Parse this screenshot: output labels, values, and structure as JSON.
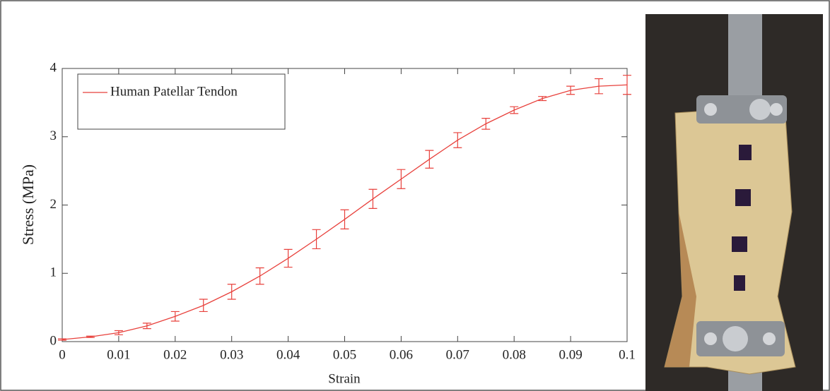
{
  "chart_data": {
    "type": "line",
    "xlabel": "Strain",
    "ylabel": "Stress (MPa)",
    "x": [
      0,
      0.005,
      0.01,
      0.015,
      0.02,
      0.025,
      0.03,
      0.035,
      0.04,
      0.045,
      0.05,
      0.055,
      0.06,
      0.065,
      0.07,
      0.075,
      0.08,
      0.085,
      0.09,
      0.095,
      0.1
    ],
    "series": [
      {
        "name": "Human Patellar Tendon",
        "color": "#e8413c",
        "values": [
          0.03,
          0.07,
          0.13,
          0.23,
          0.37,
          0.53,
          0.73,
          0.96,
          1.22,
          1.5,
          1.79,
          2.09,
          2.38,
          2.67,
          2.95,
          3.19,
          3.39,
          3.56,
          3.68,
          3.74,
          3.76
        ],
        "errors": [
          0.01,
          0.01,
          0.03,
          0.04,
          0.07,
          0.09,
          0.11,
          0.12,
          0.13,
          0.14,
          0.14,
          0.14,
          0.14,
          0.13,
          0.11,
          0.08,
          0.05,
          0.03,
          0.06,
          0.11,
          0.14
        ]
      }
    ],
    "xlim": [
      0,
      0.1
    ],
    "ylim": [
      0,
      4
    ],
    "xticks": [
      0,
      0.01,
      0.02,
      0.03,
      0.04,
      0.05,
      0.06,
      0.07,
      0.08,
      0.09,
      0.1
    ],
    "yticks": [
      0,
      1,
      2,
      3,
      4
    ],
    "legend": "upper-left"
  }
}
